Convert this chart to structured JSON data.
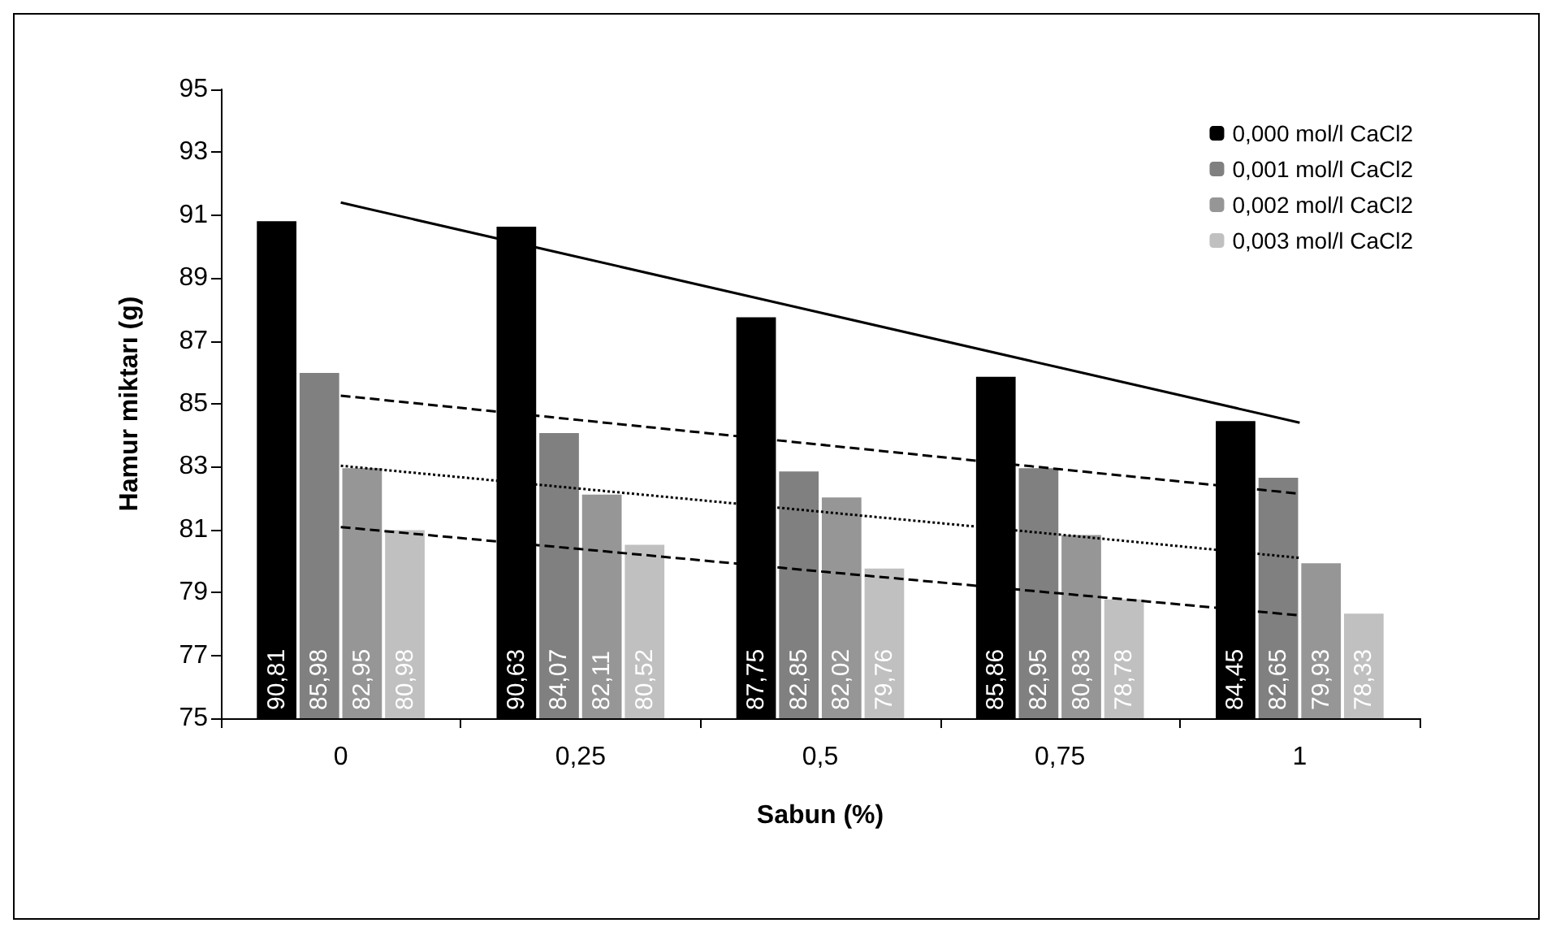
{
  "chart_data": {
    "type": "bar",
    "xlabel": "Sabun (%)",
    "ylabel": "Hamur miktarı (g)",
    "categories": [
      "0",
      "0,25",
      "0,5",
      "0,75",
      "1"
    ],
    "series": [
      {
        "name": "0,000 mol/l CaCl2",
        "color": "#000000",
        "values": [
          90.81,
          90.63,
          87.75,
          85.86,
          84.45
        ],
        "value_labels": [
          "90,81",
          "90,63",
          "87,75",
          "85,86",
          "84,45"
        ]
      },
      {
        "name": "0,001 mol/l CaCl2",
        "color": "#808080",
        "values": [
          85.98,
          84.07,
          82.85,
          82.95,
          82.65
        ],
        "value_labels": [
          "85,98",
          "84,07",
          "82,85",
          "82,95",
          "82,65"
        ]
      },
      {
        "name": "0,002 mol/l CaCl2",
        "color": "#969696",
        "values": [
          82.95,
          82.11,
          82.02,
          80.83,
          79.93
        ],
        "value_labels": [
          "82,95",
          "82,11",
          "82,02",
          "80,83",
          "79,93"
        ]
      },
      {
        "name": "0,003 mol/l CaCl2",
        "color": "#c0c0c0",
        "values": [
          80.98,
          80.52,
          79.76,
          78.78,
          78.33
        ],
        "value_labels": [
          "80,98",
          "80,52",
          "79,76",
          "78,78",
          "78,33"
        ]
      },
      {
        "type": "line",
        "color": "#000000",
        "line_style": "solid",
        "values": [
          91.4,
          89.65,
          87.9,
          86.15,
          84.4
        ]
      },
      {
        "type": "line",
        "color": "#000000",
        "line_style": "dashed",
        "values": [
          85.26,
          84.48,
          83.7,
          82.92,
          82.14
        ]
      },
      {
        "type": "line",
        "color": "#000000",
        "line_style": "dotted",
        "values": [
          83.03,
          82.3,
          81.57,
          80.84,
          80.1
        ]
      },
      {
        "type": "line",
        "color": "#000000",
        "line_style": "dashed",
        "values": [
          81.08,
          80.38,
          79.67,
          78.97,
          78.27
        ]
      }
    ],
    "ylim": [
      75,
      95
    ],
    "yticks": [
      75,
      77,
      79,
      81,
      83,
      85,
      87,
      89,
      91,
      93,
      95
    ],
    "grid": false,
    "legend": "top right",
    "marker": "none"
  }
}
